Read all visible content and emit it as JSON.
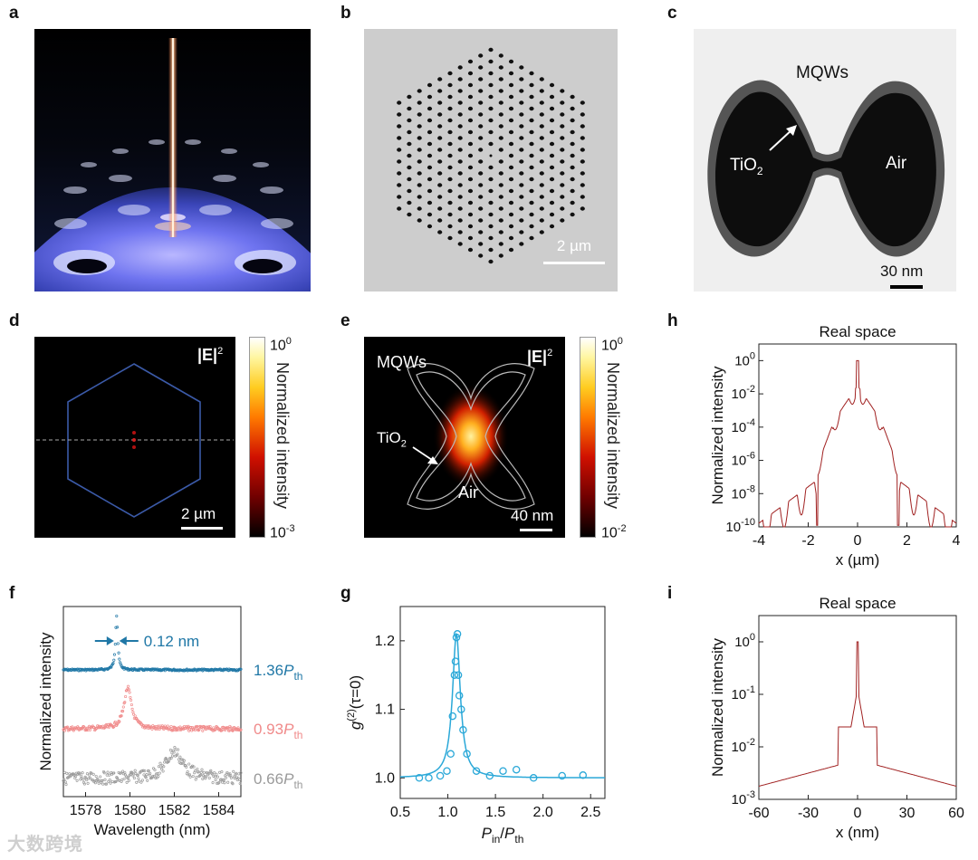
{
  "panels": {
    "a": {
      "label": "a"
    },
    "b": {
      "label": "b",
      "scalebar": "2 µm"
    },
    "c": {
      "label": "c",
      "mqw": "MQWs",
      "tio2": "TiO",
      "air": "Air",
      "scalebar": "30 nm"
    },
    "d": {
      "label": "d",
      "field": "|E|",
      "field_sup": "2",
      "scalebar": "2 µm",
      "cbar": {
        "top": "10",
        "top_exp": "0",
        "bottom": "10",
        "bottom_exp": "-3",
        "title": "Normalized intensity"
      }
    },
    "e": {
      "label": "e",
      "mqw": "MQWs",
      "field": "|E|",
      "field_sup": "2",
      "tio2": "TiO",
      "air": "Air",
      "scalebar": "40 nm",
      "cbar": {
        "top": "10",
        "top_exp": "0",
        "bottom": "10",
        "bottom_exp": "-2",
        "title": "Normalized intensity"
      }
    },
    "h": {
      "label": "h"
    },
    "f": {
      "label": "f",
      "linewidth": "0.12 nm"
    },
    "g": {
      "label": "g"
    },
    "i": {
      "label": "i"
    }
  },
  "colors": {
    "blue": "#1f77a6",
    "pink": "#f08a8a",
    "gray": "#9a9a9a",
    "cyan": "#2aa8d8",
    "darkred": "#a02020"
  },
  "watermark": "大数跨境",
  "chart_data": [
    {
      "id": "h",
      "type": "line",
      "title": "Real space",
      "xlabel": "x (µm)",
      "ylabel": "Normalized intensity",
      "xlim": [
        -4,
        4
      ],
      "ylim_log10": [
        -10,
        1
      ],
      "yscale": "log",
      "xticks": [
        "-4",
        "-2",
        "0",
        "2",
        "4"
      ],
      "yticks": [
        "10^0",
        "10^-2",
        "10^-4",
        "10^-6",
        "10^-8",
        "10^-10"
      ],
      "description_points": {
        "x": [
          -4,
          -2,
          -1.7,
          -1,
          -0.5,
          0,
          0.5,
          1,
          1.7,
          2,
          4
        ],
        "log10_y": [
          -9.7,
          -8.5,
          -7,
          -4,
          -3.5,
          0,
          -3.5,
          -4,
          -7,
          -8.5,
          -9.7
        ]
      }
    },
    {
      "id": "i",
      "type": "line",
      "title": "Real space",
      "xlabel": "x (nm)",
      "ylabel": "Normalized intensity",
      "xlim": [
        -60,
        60
      ],
      "ylim_log10": [
        -3,
        0.5
      ],
      "yscale": "log",
      "xticks": [
        "-60",
        "-30",
        "0",
        "30",
        "60"
      ],
      "yticks": [
        "10^0",
        "10^-1",
        "10^-2",
        "10^-3"
      ],
      "description_points": {
        "x": [
          -60,
          -30,
          -12,
          -12,
          -4,
          0,
          4,
          12,
          12,
          30,
          60
        ],
        "log10_y": [
          -2.75,
          -2.55,
          -2.35,
          -1.62,
          -1.6,
          0,
          -1.6,
          -1.62,
          -2.35,
          -2.55,
          -2.75
        ]
      }
    },
    {
      "id": "f",
      "type": "scatter",
      "xlabel": "Wavelength (nm)",
      "ylabel": "Normalized intensity",
      "xlim": [
        1577,
        1585
      ],
      "xticks": [
        "1578",
        "1580",
        "1582",
        "1584"
      ],
      "series": [
        {
          "name": "1.36",
          "sub": "th",
          "peak": 1579.4,
          "fwhm": 0.12,
          "level": 2
        },
        {
          "name": "0.93",
          "sub": "th",
          "peak": 1579.9,
          "fwhm": 0.4,
          "level": 1
        },
        {
          "name": "0.66",
          "sub": "th",
          "peak": 1582.0,
          "fwhm": 0.9,
          "level": 0
        }
      ]
    },
    {
      "id": "g",
      "type": "scatter",
      "xlabel": "P",
      "xlabel_sub_a": "in",
      "xlabel_sub_b": "th",
      "ylabel": "g",
      "ylabel_sup": "(2)",
      "ylabel_tail": "(τ=0)",
      "xlim": [
        0.5,
        2.65
      ],
      "ylim": [
        0.97,
        1.25
      ],
      "xticks": [
        "0.5",
        "1.0",
        "1.5",
        "2.0",
        "2.5"
      ],
      "yticks": [
        "1.0",
        "1.1",
        "1.2"
      ],
      "x": [
        0.7,
        0.8,
        0.92,
        0.99,
        1.03,
        1.05,
        1.07,
        1.08,
        1.09,
        1.1,
        1.11,
        1.12,
        1.14,
        1.16,
        1.2,
        1.3,
        1.44,
        1.58,
        1.72,
        1.9,
        2.2,
        2.42
      ],
      "y": [
        1.0,
        1.0,
        1.003,
        1.01,
        1.035,
        1.09,
        1.15,
        1.17,
        1.205,
        1.21,
        1.15,
        1.12,
        1.1,
        1.07,
        1.035,
        1.01,
        1.003,
        1.01,
        1.012,
        1.0,
        1.003,
        1.004
      ]
    }
  ]
}
